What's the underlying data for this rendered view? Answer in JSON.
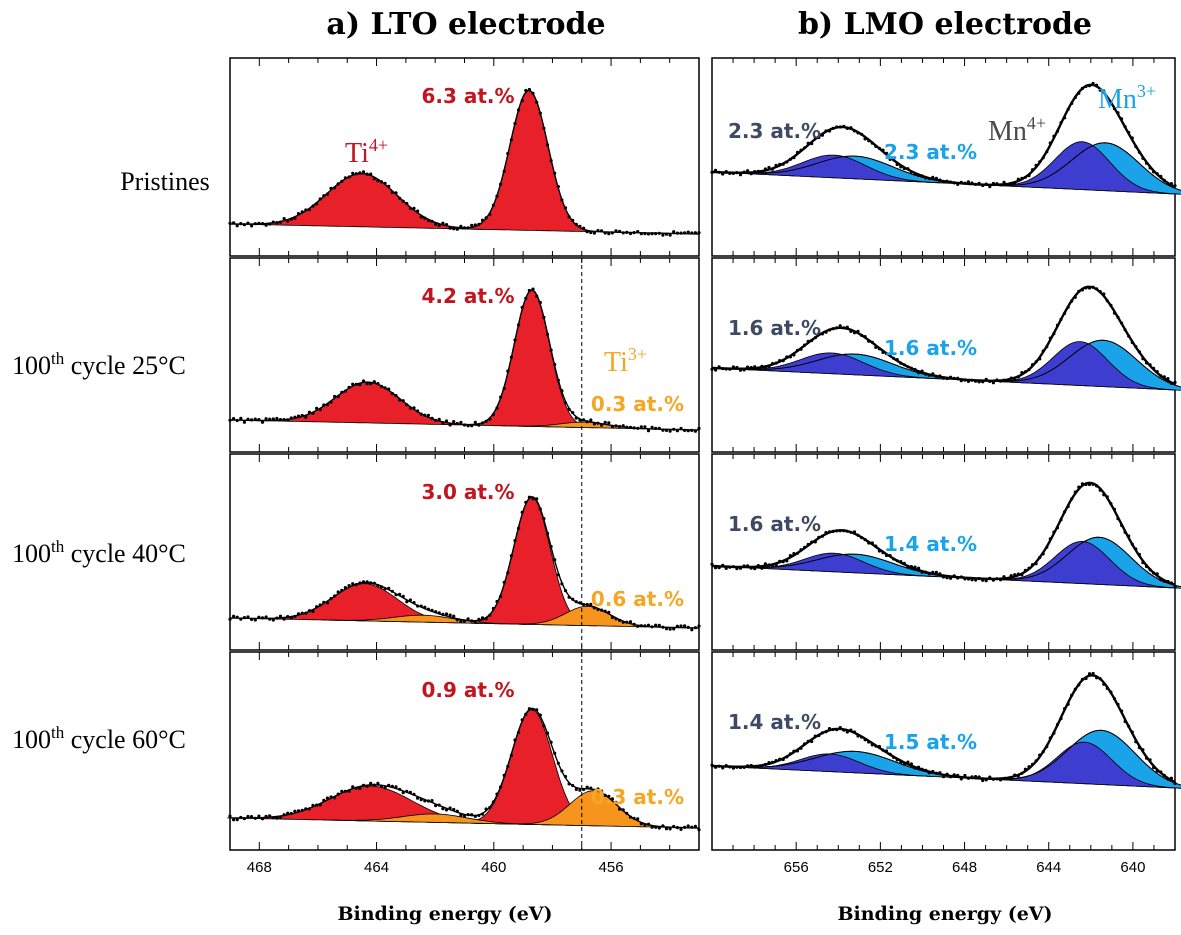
{
  "colors": {
    "ti4": "#e8202a",
    "ti3": "#f7941d",
    "ti4_text": "#c0161f",
    "ti3_text": "#f5a623",
    "mn4": "#3d3dd0",
    "mn3": "#1aa3e8",
    "mn4_text": "#3e4a63",
    "mn3_text": "#1aa3e8",
    "exp": "#000000"
  },
  "titles": {
    "a": "a) LTO electrode",
    "b": "b) LMO electrode"
  },
  "row_labels": [
    {
      "text": "Pristines",
      "sup": "",
      "rest": ""
    },
    {
      "text": "100",
      "sup": "th",
      "rest": " cycle 25°C"
    },
    {
      "text": "100",
      "sup": "th",
      "rest": " cycle 40°C"
    },
    {
      "text": "100",
      "sup": "th",
      "rest": " cycle 60°C"
    }
  ],
  "ion_labels": {
    "ti4": {
      "base": "Ti",
      "sup": "4+"
    },
    "ti3": {
      "base": "Ti",
      "sup": "3+"
    },
    "mn4": {
      "base": "Mn",
      "sup": "4+"
    },
    "mn3": {
      "base": "Mn",
      "sup": "3+"
    }
  },
  "axis": {
    "xlabel": "Binding energy (eV)"
  },
  "chart_data": [
    {
      "type": "area",
      "title": "a) LTO electrode",
      "xlabel": "Binding energy (eV)",
      "x_reversed": true,
      "xlim": [
        469,
        453
      ],
      "xticks": [
        468,
        464,
        460,
        456
      ],
      "reference_line_x": 457,
      "panels": [
        {
          "row": "Pristines",
          "ti4_label": "6.3 at.%",
          "ti3_label": "",
          "series": [
            {
              "name": "Ti4+",
              "peaks": [
                {
                  "center": 464.5,
                  "height": 0.38,
                  "width": 1.2
                },
                {
                  "center": 458.8,
                  "height": 1.0,
                  "width": 0.65
                }
              ]
            }
          ]
        },
        {
          "row": "100th cycle 25°C",
          "ti4_label": "4.2 at.%",
          "ti3_label": "0.3 at.%",
          "series": [
            {
              "name": "Ti4+",
              "peaks": [
                {
                  "center": 464.3,
                  "height": 0.3,
                  "width": 1.1
                },
                {
                  "center": 458.7,
                  "height": 1.0,
                  "width": 0.6
                }
              ]
            },
            {
              "name": "Ti3+",
              "peaks": [
                {
                  "center": 456.9,
                  "height": 0.04,
                  "width": 0.8
                }
              ]
            }
          ]
        },
        {
          "row": "100th cycle 40°C",
          "ti4_label": "3.0 at.%",
          "ti3_label": "0.6 at.%",
          "series": [
            {
              "name": "Ti4+",
              "peaks": [
                {
                  "center": 464.4,
                  "height": 0.27,
                  "width": 1.1
                },
                {
                  "center": 458.7,
                  "height": 0.92,
                  "width": 0.62
                }
              ]
            },
            {
              "name": "Ti3+",
              "peaks": [
                {
                  "center": 462.4,
                  "height": 0.05,
                  "width": 1.0
                },
                {
                  "center": 456.8,
                  "height": 0.14,
                  "width": 0.75
                }
              ]
            }
          ]
        },
        {
          "row": "100th cycle 60°C",
          "ti4_label": "0.9 at.%",
          "ti3_label": "0.3 at.%",
          "series": [
            {
              "name": "Ti4+",
              "peaks": [
                {
                  "center": 464.2,
                  "height": 0.25,
                  "width": 1.4
                },
                {
                  "center": 458.7,
                  "height": 0.82,
                  "width": 0.7
                }
              ]
            },
            {
              "name": "Ti3+",
              "peaks": [
                {
                  "center": 462.0,
                  "height": 0.06,
                  "width": 1.1
                },
                {
                  "center": 456.6,
                  "height": 0.25,
                  "width": 0.8
                }
              ]
            }
          ]
        }
      ]
    },
    {
      "type": "area",
      "title": "b) LMO electrode",
      "xlabel": "Binding energy (eV)",
      "x_reversed": true,
      "xlim": [
        660,
        638
      ],
      "xticks": [
        656,
        652,
        648,
        644,
        640
      ],
      "panels": [
        {
          "row": "Pristines",
          "mn4_label": "2.3 at.%",
          "mn3_label": "2.3 at.%",
          "series": [
            {
              "name": "Mn4+",
              "peaks": [
                {
                  "center": 654.2,
                  "height": 0.18,
                  "width": 1.5
                },
                {
                  "center": 642.4,
                  "height": 0.38,
                  "width": 1.3
                }
              ]
            },
            {
              "name": "Mn3+",
              "peaks": [
                {
                  "center": 653.2,
                  "height": 0.18,
                  "width": 1.8
                },
                {
                  "center": 641.3,
                  "height": 0.38,
                  "width": 1.6
                }
              ]
            }
          ]
        },
        {
          "row": "100th cycle 25°C",
          "mn4_label": "1.6 at.%",
          "mn3_label": "1.6 at.%",
          "series": [
            {
              "name": "Mn4+",
              "peaks": [
                {
                  "center": 654.3,
                  "height": 0.17,
                  "width": 1.5
                },
                {
                  "center": 642.5,
                  "height": 0.36,
                  "width": 1.3
                }
              ]
            },
            {
              "name": "Mn3+",
              "peaks": [
                {
                  "center": 653.2,
                  "height": 0.17,
                  "width": 1.8
                },
                {
                  "center": 641.4,
                  "height": 0.38,
                  "width": 1.6
                }
              ]
            }
          ]
        },
        {
          "row": "100th cycle 40°C",
          "mn4_label": "1.6 at.%",
          "mn3_label": "1.4 at.%",
          "series": [
            {
              "name": "Mn4+",
              "peaks": [
                {
                  "center": 654.2,
                  "height": 0.15,
                  "width": 1.4
                },
                {
                  "center": 642.4,
                  "height": 0.34,
                  "width": 1.3
                }
              ]
            },
            {
              "name": "Mn3+",
              "peaks": [
                {
                  "center": 653.2,
                  "height": 0.15,
                  "width": 1.8
                },
                {
                  "center": 641.6,
                  "height": 0.38,
                  "width": 1.5
                }
              ]
            }
          ]
        },
        {
          "row": "100th cycle 60°C",
          "mn4_label": "1.4 at.%",
          "mn3_label": "1.5 at.%",
          "series": [
            {
              "name": "Mn4+",
              "peaks": [
                {
                  "center": 654.4,
                  "height": 0.14,
                  "width": 1.4
                },
                {
                  "center": 642.3,
                  "height": 0.33,
                  "width": 1.3
                }
              ]
            },
            {
              "name": "Mn3+",
              "peaks": [
                {
                  "center": 653.2,
                  "height": 0.17,
                  "width": 1.9
                },
                {
                  "center": 641.5,
                  "height": 0.43,
                  "width": 1.6
                }
              ]
            }
          ]
        }
      ]
    }
  ]
}
